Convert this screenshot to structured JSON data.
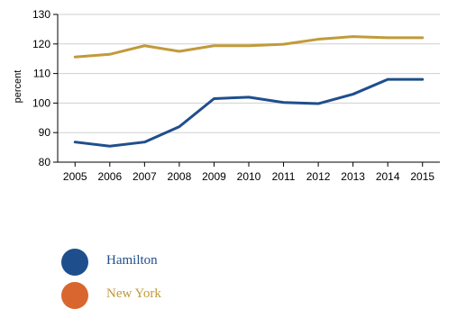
{
  "chart_data": {
    "type": "line",
    "ylabel": "percent",
    "xlabel": "",
    "title": "",
    "x": [
      "2005",
      "2006",
      "2007",
      "2008",
      "2009",
      "2010",
      "2011",
      "2012",
      "2013",
      "2014",
      "2015"
    ],
    "ylim": [
      80,
      130
    ],
    "yticks": [
      80,
      90,
      100,
      110,
      120,
      130
    ],
    "grid": true,
    "series": [
      {
        "name": "Hamilton",
        "color": "#1f4e8c",
        "values": [
          86.8,
          85.4,
          86.8,
          92.0,
          101.5,
          102.0,
          100.2,
          99.8,
          103.0,
          108.0,
          108.0
        ]
      },
      {
        "name": "New York",
        "color": "#c19a3a",
        "values": [
          115.6,
          116.5,
          119.4,
          117.5,
          119.4,
          119.4,
          119.9,
          121.6,
          122.5,
          122.1,
          122.1
        ]
      }
    ]
  },
  "legend": {
    "items": [
      {
        "label": "Hamilton",
        "dot_color": "#1f4e8c",
        "text_color": "#1f4e8c"
      },
      {
        "label": "New York",
        "dot_color": "#d9662f",
        "text_color": "#c19a3a"
      }
    ]
  }
}
